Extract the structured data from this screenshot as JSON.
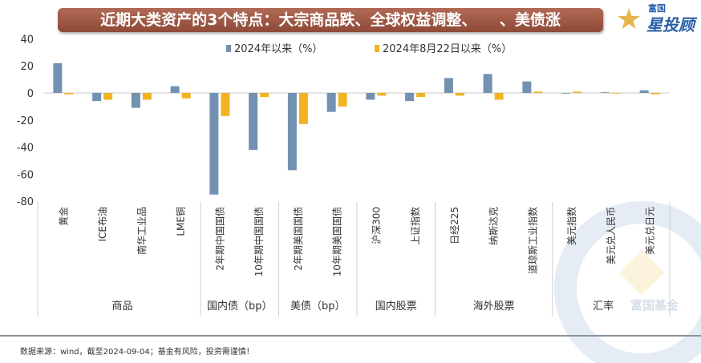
{
  "title": "近期大类资产的3个特点：大宗商品跌、全球权益调整、　　、美债涨",
  "logo": {
    "line1": "富国",
    "line2": "星投顾"
  },
  "watermark": "富国基金",
  "footer": "数据来源：wind，截至2024-09-04；基金有风险，投资需谨慎！",
  "chart_data": {
    "type": "bar",
    "title": "",
    "ylim": [
      -80,
      40
    ],
    "yticks": [
      40,
      20,
      0,
      -20,
      -40,
      -60,
      -80
    ],
    "grid": false,
    "legend_position": "top",
    "categories": [
      "黄金",
      "ICE布油",
      "南华工业品",
      "LME铜",
      "2年期中国国债",
      "10年期中国国债",
      "2年期美国国债",
      "10年期美国国债",
      "沪深300",
      "上证指数",
      "日经225",
      "纳斯达克",
      "道琼斯工业指数",
      "美元指数",
      "美元兑人民币",
      "美元兑日元"
    ],
    "groups": [
      {
        "label": "商品",
        "count": 4
      },
      {
        "label": "国内债（bp）",
        "count": 2
      },
      {
        "label": "美债（bp）",
        "count": 2
      },
      {
        "label": "国内股票",
        "count": 2
      },
      {
        "label": "海外股票",
        "count": 3
      },
      {
        "label": "汇率",
        "count": 3
      }
    ],
    "series": [
      {
        "name": "2024年以来（%）",
        "color": "#7391b0",
        "values": [
          22,
          -6,
          -11,
          5,
          -75,
          -42,
          -57,
          -14,
          -5,
          -6,
          11,
          14,
          8.5,
          0,
          0.5,
          2
        ]
      },
      {
        "name": "2024年8月22日以来（%）",
        "color": "#f2b322",
        "values": [
          -1,
          -5,
          -5,
          -4,
          -17,
          -3,
          -23,
          -10,
          -2,
          -3,
          -2,
          -5,
          1,
          1,
          0,
          -1
        ]
      }
    ]
  }
}
